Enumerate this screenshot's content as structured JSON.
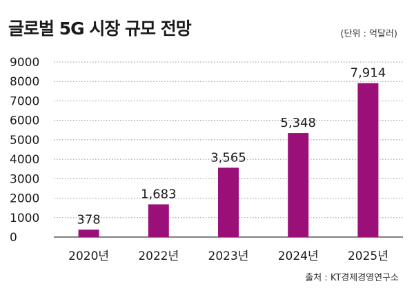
{
  "header": {
    "title": "글로벌 5G 시장 규모 전망",
    "unit": "(단위 : 억달러)"
  },
  "footer": {
    "source": "출처 : KT경제경영연구소"
  },
  "colors": {
    "bar": "#9b0f78",
    "grid": "#8f8f8f",
    "axis": "#333333",
    "text": "#1a1a1a"
  },
  "chart_data": {
    "type": "bar",
    "title": "글로벌 5G 시장 규모 전망",
    "unit_label": "(단위 : 억달러)",
    "categories": [
      "2020년",
      "2022년",
      "2023년",
      "2024년",
      "2025년"
    ],
    "values": [
      378,
      1683,
      3565,
      5348,
      7914
    ],
    "value_labels": [
      "378",
      "1,683",
      "3,565",
      "5,348",
      "7,914"
    ],
    "y_ticks": [
      "0",
      "1000",
      "2000",
      "3000",
      "4000",
      "5000",
      "6000",
      "7000",
      "8000",
      "9000"
    ],
    "ylim": [
      0,
      9000
    ],
    "grid": true,
    "source": "출처 : KT경제경영연구소"
  }
}
